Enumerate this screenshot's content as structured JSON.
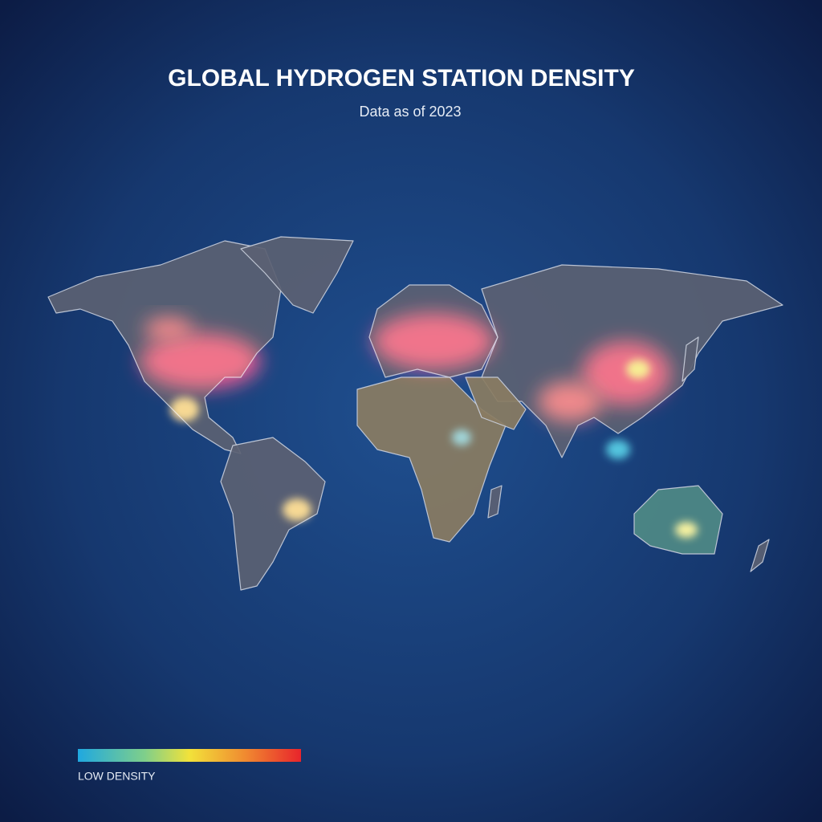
{
  "header": {
    "title": "GLOBAL HYDROGEN STATION DENSITY",
    "subtitle": "Data as of 2023"
  },
  "legend": {
    "label": "LOW DENSITY"
  }
}
